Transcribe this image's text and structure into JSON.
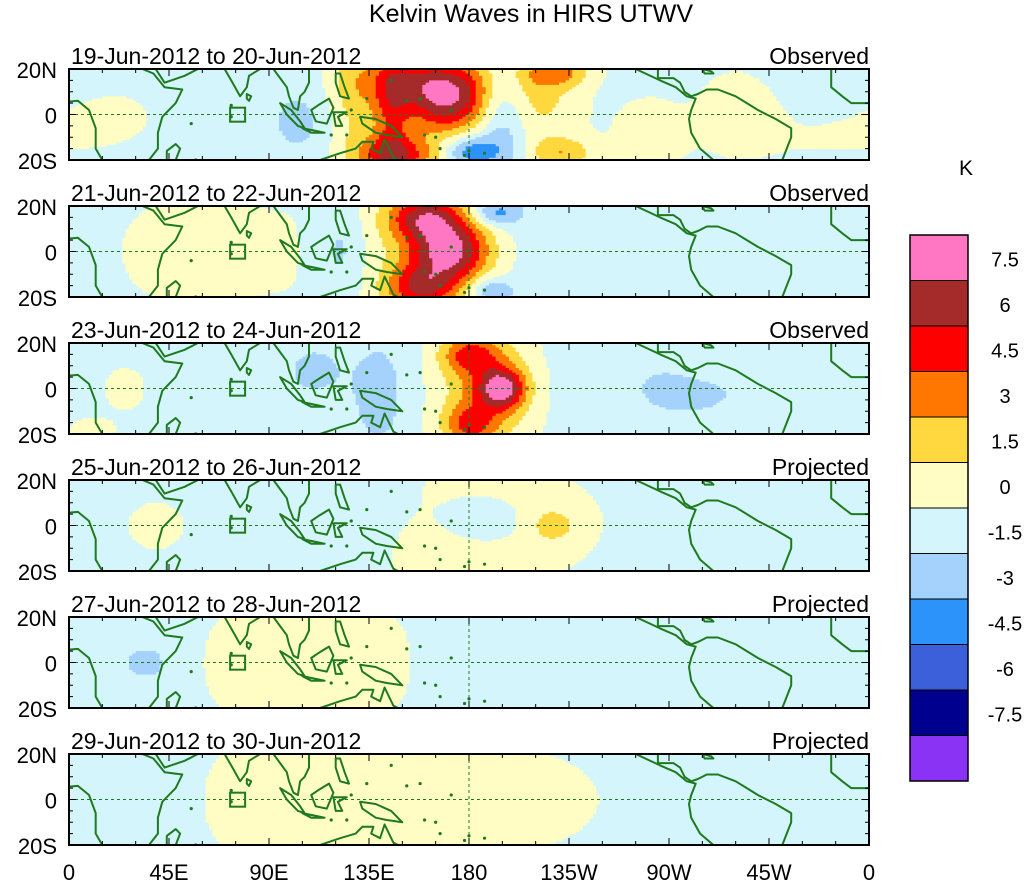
{
  "chart_data": {
    "type": "heatmap",
    "title": "Kelvin Waves in HIRS UTWV",
    "variable": "HIRS UTWV anomaly",
    "unit": "K",
    "x_ticks": [
      "0",
      "45E",
      "90E",
      "135E",
      "180",
      "135W",
      "90W",
      "45W",
      "0"
    ],
    "x_range_lon": [
      0,
      360
    ],
    "y_ticks": [
      "20N",
      "0",
      "20S"
    ],
    "y_range_lat": [
      -20,
      20
    ],
    "colorbar": {
      "labels": [
        "7.5",
        "6",
        "4.5",
        "3",
        "1.5",
        "0",
        "-1.5",
        "-3",
        "-4.5",
        "-6",
        "-7.5"
      ],
      "colors": [
        "#ff77c2",
        "#a52a2a",
        "#ff0000",
        "#ff7700",
        "#ffd83f",
        "#fffdc4",
        "#d3f5fb",
        "#a5d1fd",
        "#2c93fa",
        "#3c60d9",
        "#00008f",
        "#8b33f5"
      ]
    },
    "land_color": "#1f7a1f",
    "panels": [
      {
        "label": "19-Jun-2012 to 20-Jun-2012",
        "status": "Observed",
        "features": [
          {
            "lon": 170,
            "lat": 5,
            "sx": 14,
            "sy": 10,
            "v": 6.5
          },
          {
            "lon": 160,
            "lat": 16,
            "sx": 20,
            "sy": 8,
            "v": 4
          },
          {
            "lon": 148,
            "lat": -18,
            "sx": 14,
            "sy": 6,
            "v": 5
          },
          {
            "lon": 145,
            "lat": 0,
            "sx": 6,
            "sy": 20,
            "v": 3.5
          },
          {
            "lon": 128,
            "lat": 6,
            "sx": 8,
            "sy": 18,
            "v": 2
          },
          {
            "lon": 210,
            "lat": 10,
            "sx": 14,
            "sy": 16,
            "v": 2.5
          },
          {
            "lon": 220,
            "lat": 18,
            "sx": 10,
            "sy": 4,
            "v": 3
          },
          {
            "lon": 222,
            "lat": -17,
            "sx": 10,
            "sy": 5,
            "v": 3
          },
          {
            "lon": 195,
            "lat": 0,
            "sx": 8,
            "sy": 18,
            "v": -3
          },
          {
            "lon": 180,
            "lat": -16,
            "sx": 9,
            "sy": 5,
            "v": -4
          },
          {
            "lon": 300,
            "lat": 2,
            "sx": 12,
            "sy": 12,
            "v": 2
          },
          {
            "lon": 262,
            "lat": -8,
            "sx": 12,
            "sy": 12,
            "v": 1.6
          },
          {
            "lon": 25,
            "lat": 0,
            "sx": 25,
            "sy": 14,
            "v": 0.8
          },
          {
            "lon": 70,
            "lat": 0,
            "sx": 30,
            "sy": 25,
            "v": -0.7
          },
          {
            "lon": 105,
            "lat": -3,
            "sx": 12,
            "sy": 14,
            "v": -1.5
          },
          {
            "lon": 330,
            "lat": -10,
            "sx": 30,
            "sy": 12,
            "v": 0.8
          }
        ]
      },
      {
        "label": "21-Jun-2012 to 22-Jun-2012",
        "status": "Observed",
        "features": [
          {
            "lon": 172,
            "lat": 0,
            "sx": 12,
            "sy": 9,
            "v": 6.5
          },
          {
            "lon": 160,
            "lat": 15,
            "sx": 12,
            "sy": 7,
            "v": 5.5
          },
          {
            "lon": 158,
            "lat": -16,
            "sx": 11,
            "sy": 7,
            "v": 5
          },
          {
            "lon": 165,
            "lat": 0,
            "sx": 18,
            "sy": 22,
            "v": 2
          },
          {
            "lon": 122,
            "lat": 0,
            "sx": 8,
            "sy": 16,
            "v": -1.8
          },
          {
            "lon": 192,
            "lat": 17,
            "sx": 8,
            "sy": 4,
            "v": -3.5
          },
          {
            "lon": 190,
            "lat": -17,
            "sx": 7,
            "sy": 4,
            "v": -3
          },
          {
            "lon": 45,
            "lat": 0,
            "sx": 25,
            "sy": 18,
            "v": 0.8
          },
          {
            "lon": 265,
            "lat": 15,
            "sx": 20,
            "sy": 6,
            "v": 0.8
          },
          {
            "lon": 230,
            "lat": 0,
            "sx": 30,
            "sy": 25,
            "v": -0.7
          },
          {
            "lon": 320,
            "lat": -5,
            "sx": 25,
            "sy": 18,
            "v": -0.6
          }
        ]
      },
      {
        "label": "23-Jun-2012 to 24-Jun-2012",
        "status": "Observed",
        "features": [
          {
            "lon": 195,
            "lat": 0,
            "sx": 7,
            "sy": 6,
            "v": 6
          },
          {
            "lon": 190,
            "lat": 0,
            "sx": 12,
            "sy": 14,
            "v": 3
          },
          {
            "lon": 180,
            "lat": 15,
            "sx": 9,
            "sy": 6,
            "v": 4
          },
          {
            "lon": 180,
            "lat": -16,
            "sx": 8,
            "sy": 6,
            "v": 4
          },
          {
            "lon": 190,
            "lat": -2,
            "sx": 22,
            "sy": 24,
            "v": 1.2
          },
          {
            "lon": 140,
            "lat": -2,
            "sx": 12,
            "sy": 22,
            "v": -2
          },
          {
            "lon": 110,
            "lat": 8,
            "sx": 10,
            "sy": 10,
            "v": -1.5
          },
          {
            "lon": 25,
            "lat": 0,
            "sx": 8,
            "sy": 8,
            "v": 2
          },
          {
            "lon": 10,
            "lat": -18,
            "sx": 8,
            "sy": 4,
            "v": 2
          },
          {
            "lon": 60,
            "lat": 0,
            "sx": 40,
            "sy": 25,
            "v": -0.8
          },
          {
            "lon": 260,
            "lat": 0,
            "sx": 50,
            "sy": 25,
            "v": -0.8
          },
          {
            "lon": 300,
            "lat": 15,
            "sx": 15,
            "sy": 6,
            "v": 0.6
          }
        ]
      },
      {
        "label": "25-Jun-2012 to 26-Jun-2012",
        "status": "Projected",
        "features": [
          {
            "lon": 218,
            "lat": 0,
            "sx": 8,
            "sy": 6,
            "v": 2
          },
          {
            "lon": 205,
            "lat": 0,
            "sx": 30,
            "sy": 25,
            "v": 0.6
          },
          {
            "lon": 185,
            "lat": 2,
            "sx": 12,
            "sy": 6,
            "v": -1.6
          },
          {
            "lon": 130,
            "lat": 0,
            "sx": 15,
            "sy": 20,
            "v": -1.1
          },
          {
            "lon": 75,
            "lat": 0,
            "sx": 30,
            "sy": 20,
            "v": -0.8
          },
          {
            "lon": 40,
            "lat": 0,
            "sx": 10,
            "sy": 8,
            "v": 1.6
          },
          {
            "lon": 300,
            "lat": 5,
            "sx": 40,
            "sy": 20,
            "v": 0.7
          },
          {
            "lon": 160,
            "lat": -12,
            "sx": 20,
            "sy": 10,
            "v": 0.6
          }
        ]
      },
      {
        "label": "27-Jun-2012 to 28-Jun-2012",
        "status": "Projected",
        "features": [
          {
            "lon": 100,
            "lat": 0,
            "sx": 25,
            "sy": 20,
            "v": 0.8
          },
          {
            "lon": 205,
            "lat": 0,
            "sx": 30,
            "sy": 20,
            "v": -0.7
          },
          {
            "lon": 260,
            "lat": 0,
            "sx": 40,
            "sy": 20,
            "v": 0.6
          },
          {
            "lon": 35,
            "lat": 0,
            "sx": 8,
            "sy": 6,
            "v": -1.6
          },
          {
            "lon": 330,
            "lat": 0,
            "sx": 25,
            "sy": 20,
            "v": -0.6
          }
        ]
      },
      {
        "label": "29-Jun-2012 to 30-Jun-2012",
        "status": "Projected",
        "features": [
          {
            "lon": 100,
            "lat": 0,
            "sx": 25,
            "sy": 20,
            "v": 0.8
          },
          {
            "lon": 220,
            "lat": 0,
            "sx": 40,
            "sy": 20,
            "v": 0.6
          },
          {
            "lon": 20,
            "lat": 0,
            "sx": 15,
            "sy": 10,
            "v": -0.6
          },
          {
            "lon": 320,
            "lat": 0,
            "sx": 30,
            "sy": 20,
            "v": 0.5
          }
        ]
      }
    ]
  }
}
